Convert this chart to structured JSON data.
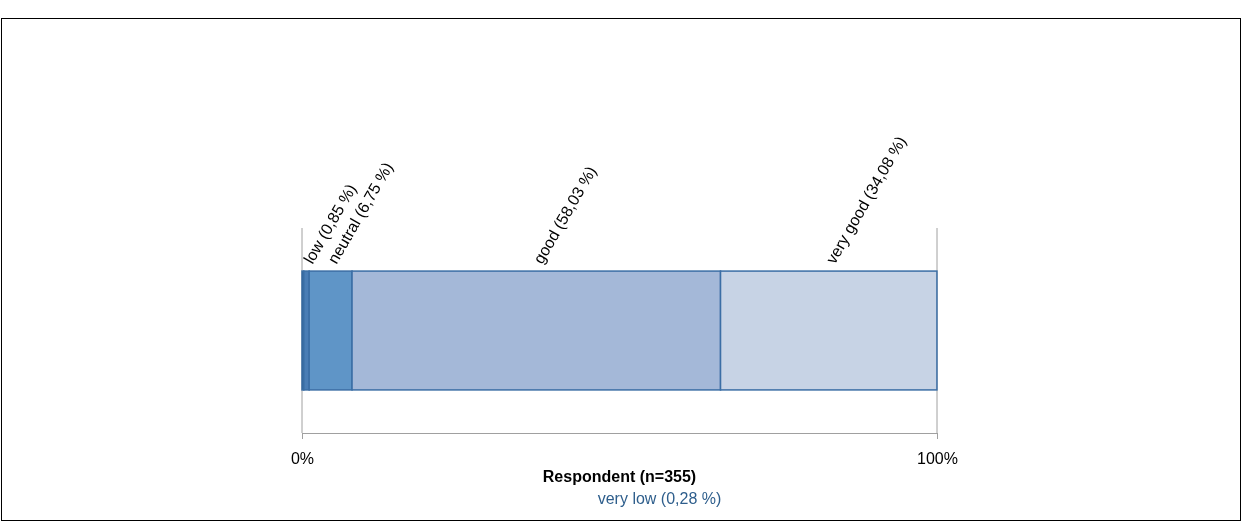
{
  "chart_data": {
    "type": "bar",
    "orientation": "horizontal",
    "stacked": true,
    "xlabel": "Respondent (n=355)",
    "categories": [
      null
    ],
    "series": [
      {
        "name": "very low (0,28 %)",
        "color": "#2e5e8c",
        "values": [
          0.28
        ]
      },
      {
        "name": "low (0,85 %)",
        "color": "#4a7db5",
        "values": [
          0.85
        ]
      },
      {
        "name": "neutral (6,75 %)",
        "color": "#5f95c7",
        "values": [
          6.75
        ]
      },
      {
        "name": "good (58,03 %)",
        "color": "#a4b8d8",
        "values": [
          58.03
        ]
      },
      {
        "name": "very good (34,08 %)",
        "color": "#c7d3e5",
        "values": [
          34.08
        ]
      }
    ],
    "xlim": [
      0,
      100
    ],
    "xticks": [
      {
        "value": 0,
        "label": "0%"
      },
      {
        "value": 100,
        "label": "100%"
      }
    ],
    "grid": "x"
  }
}
